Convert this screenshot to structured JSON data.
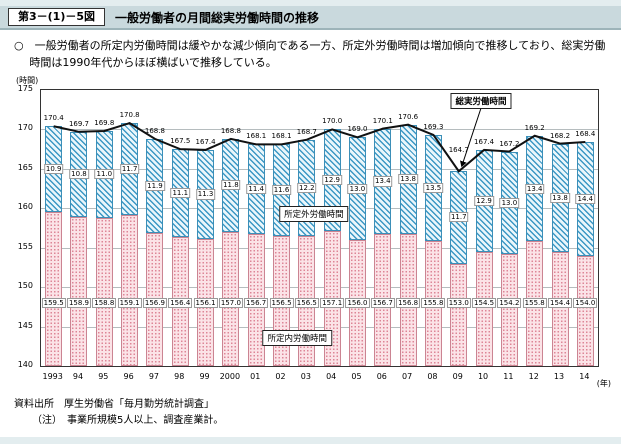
{
  "header": {
    "figure_label": "第3－(1)－5図",
    "title": "一般労働者の月間総実労働時間の推移"
  },
  "summary": "○　一般労働者の所定内労働時間は緩やかな減少傾向である一方、所定外労働時間は増加傾向で推移しており、総実労働時間は1990年代からほぼ横ばいで推移している。",
  "chart_data": {
    "type": "bar",
    "stacked": true,
    "unit_label": "(時間)",
    "year_label": "(年)",
    "categories": [
      "1993",
      "94",
      "95",
      "96",
      "97",
      "98",
      "99",
      "2000",
      "01",
      "02",
      "03",
      "04",
      "05",
      "06",
      "07",
      "08",
      "09",
      "10",
      "11",
      "12",
      "13",
      "14"
    ],
    "series": [
      {
        "name": "所定内労働時間",
        "values": [
          159.5,
          158.9,
          158.8,
          159.1,
          156.9,
          156.4,
          156.1,
          157.0,
          156.7,
          156.5,
          156.5,
          157.1,
          156.0,
          156.7,
          156.8,
          155.8,
          153.0,
          154.5,
          154.2,
          155.8,
          154.4,
          154.0
        ]
      },
      {
        "name": "所定外労働時間",
        "values": [
          10.9,
          10.8,
          11.0,
          11.7,
          11.9,
          11.1,
          11.3,
          11.8,
          11.4,
          11.6,
          12.2,
          12.9,
          13.0,
          13.4,
          13.8,
          13.5,
          11.7,
          12.9,
          13.0,
          13.4,
          13.8,
          14.4
        ]
      }
    ],
    "line": {
      "name": "総実労働時間",
      "values": [
        170.4,
        169.7,
        169.8,
        170.8,
        168.8,
        167.5,
        167.4,
        168.8,
        168.1,
        168.1,
        168.7,
        170.0,
        169.0,
        170.1,
        170.6,
        169.3,
        164.7,
        167.4,
        167.2,
        169.2,
        168.2,
        168.4
      ]
    },
    "ylim": [
      140,
      175
    ],
    "yticks": [
      140,
      145,
      150,
      155,
      160,
      165,
      170,
      175
    ],
    "grid": true,
    "labels": {
      "line_label": "総実労働時間",
      "overtime_label": "所定外労働時間",
      "scheduled_label": "所定内労働時間"
    },
    "colors": {
      "scheduled_fill": "#fbe3e7",
      "scheduled_dot": "#dd8496",
      "overtime_fill": "#eaf6fb",
      "overtime_stripe": "#3b97c4",
      "line_color": "#111111"
    }
  },
  "footer": {
    "source": "資料出所　厚生労働省「毎月勤労統計調査」",
    "note": "（注）　事業所規模5人以上、調査産業計。"
  }
}
